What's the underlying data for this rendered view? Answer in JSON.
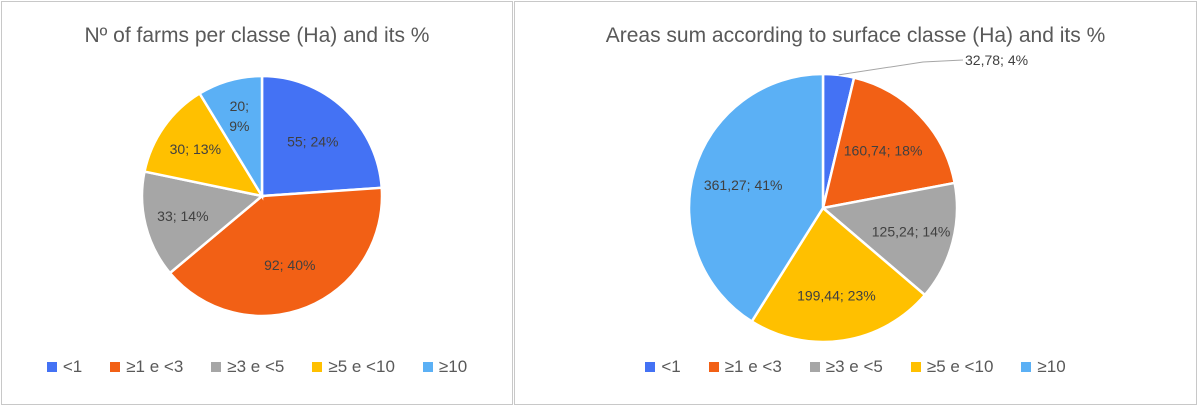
{
  "chart_data": [
    {
      "type": "pie",
      "title": "Nº of farms per classe (Ha) and its %",
      "categories": [
        "<1",
        "≥1 e <3",
        "≥3 e <5",
        "≥5 e <10",
        "≥10"
      ],
      "values": [
        55,
        92,
        33,
        30,
        20
      ],
      "labels": [
        "55; 24%",
        "92; 40%",
        "33; 14%",
        "30; 13%",
        "20; 9%"
      ],
      "colors": [
        "#4472F4",
        "#F26015",
        "#A6A6A6",
        "#FFC000",
        "#5BB0F5"
      ],
      "legend": "bottom"
    },
    {
      "type": "pie",
      "title": "Areas sum according to surface classe (Ha) and its %",
      "categories": [
        "<1",
        "≥1 e <3",
        "≥3 e <5",
        "≥5 e <10",
        "≥10"
      ],
      "values": [
        32.78,
        160.74,
        125.24,
        199.44,
        361.27
      ],
      "labels": [
        "32,78; 4%",
        "160,74; 18%",
        "125,24; 14%",
        "199,44; 23%",
        "361,27; 41%"
      ],
      "colors": [
        "#4472F4",
        "#F26015",
        "#A6A6A6",
        "#FFC000",
        "#5BB0F5"
      ],
      "legend": "bottom"
    }
  ]
}
